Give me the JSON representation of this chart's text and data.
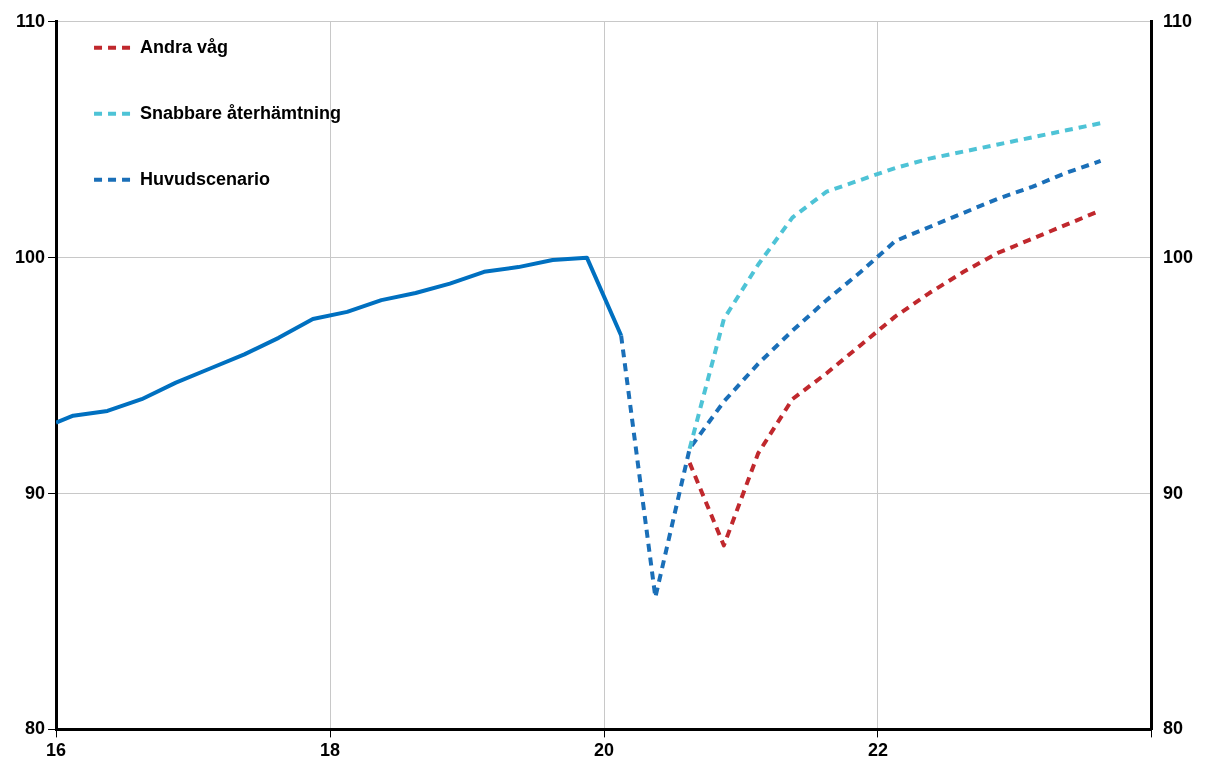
{
  "chart_data": {
    "type": "line",
    "xlim": [
      16,
      24
    ],
    "xticks": [
      16,
      18,
      20,
      22,
      {
        "value": 24,
        "label": null
      }
    ],
    "ylim": [
      80,
      110
    ],
    "yticks": [
      80,
      90,
      100,
      110
    ],
    "y2lim": [
      80,
      110
    ],
    "y2ticks": [
      80,
      90,
      100,
      110
    ],
    "grid": true,
    "legend": "top left",
    "marker": "none",
    "series": [
      {
        "color": "#0070c0",
        "line_style": "solid",
        "x": [
          16,
          16.125,
          16.375,
          16.625,
          16.875,
          17.125,
          17.375,
          17.625,
          17.875,
          18.125,
          18.375,
          18.625,
          18.875,
          19.125,
          19.375,
          19.625,
          19.875,
          20.125
        ],
        "values": [
          93.0,
          93.3,
          93.5,
          94.0,
          94.7,
          95.3,
          95.9,
          96.6,
          97.4,
          97.7,
          98.2,
          98.5,
          98.9,
          99.4,
          99.6,
          99.9,
          100.0,
          96.7
        ]
      },
      {
        "name": "Andra våg",
        "color": "#c0282d",
        "line_style": "dashed",
        "x": [
          20.625,
          20.875,
          21.125,
          21.375,
          21.625,
          21.875,
          22.125,
          22.375,
          22.625,
          22.875,
          23.125,
          23.375,
          23.625
        ],
        "values": [
          91.3,
          87.8,
          91.7,
          94.0,
          95.1,
          96.3,
          97.5,
          98.5,
          99.4,
          100.2,
          100.8,
          101.4,
          102.0
        ]
      },
      {
        "name": "Snabbare återhämtning",
        "color": "#4ec3d6",
        "line_style": "dashed",
        "x": [
          20.625,
          20.875,
          21.125,
          21.375,
          21.625,
          21.875,
          22.125,
          22.375,
          22.625,
          22.875,
          23.125,
          23.375,
          23.625
        ],
        "values": [
          91.9,
          97.4,
          99.7,
          101.7,
          102.8,
          103.3,
          103.8,
          104.2,
          104.5,
          104.8,
          105.1,
          105.4,
          105.7
        ]
      },
      {
        "name": "Huvudscenario",
        "color": "#1a6fb8",
        "line_style": "dashed",
        "x": [
          20.125,
          20.375,
          20.625,
          20.875,
          21.125,
          21.375,
          21.625,
          21.875,
          22.125,
          22.375,
          22.625,
          22.875,
          23.125,
          23.375,
          23.625
        ],
        "values": [
          96.7,
          85.6,
          91.9,
          93.9,
          95.5,
          96.9,
          98.2,
          99.4,
          100.7,
          101.3,
          101.9,
          102.5,
          103.0,
          103.6,
          104.1
        ]
      }
    ]
  }
}
